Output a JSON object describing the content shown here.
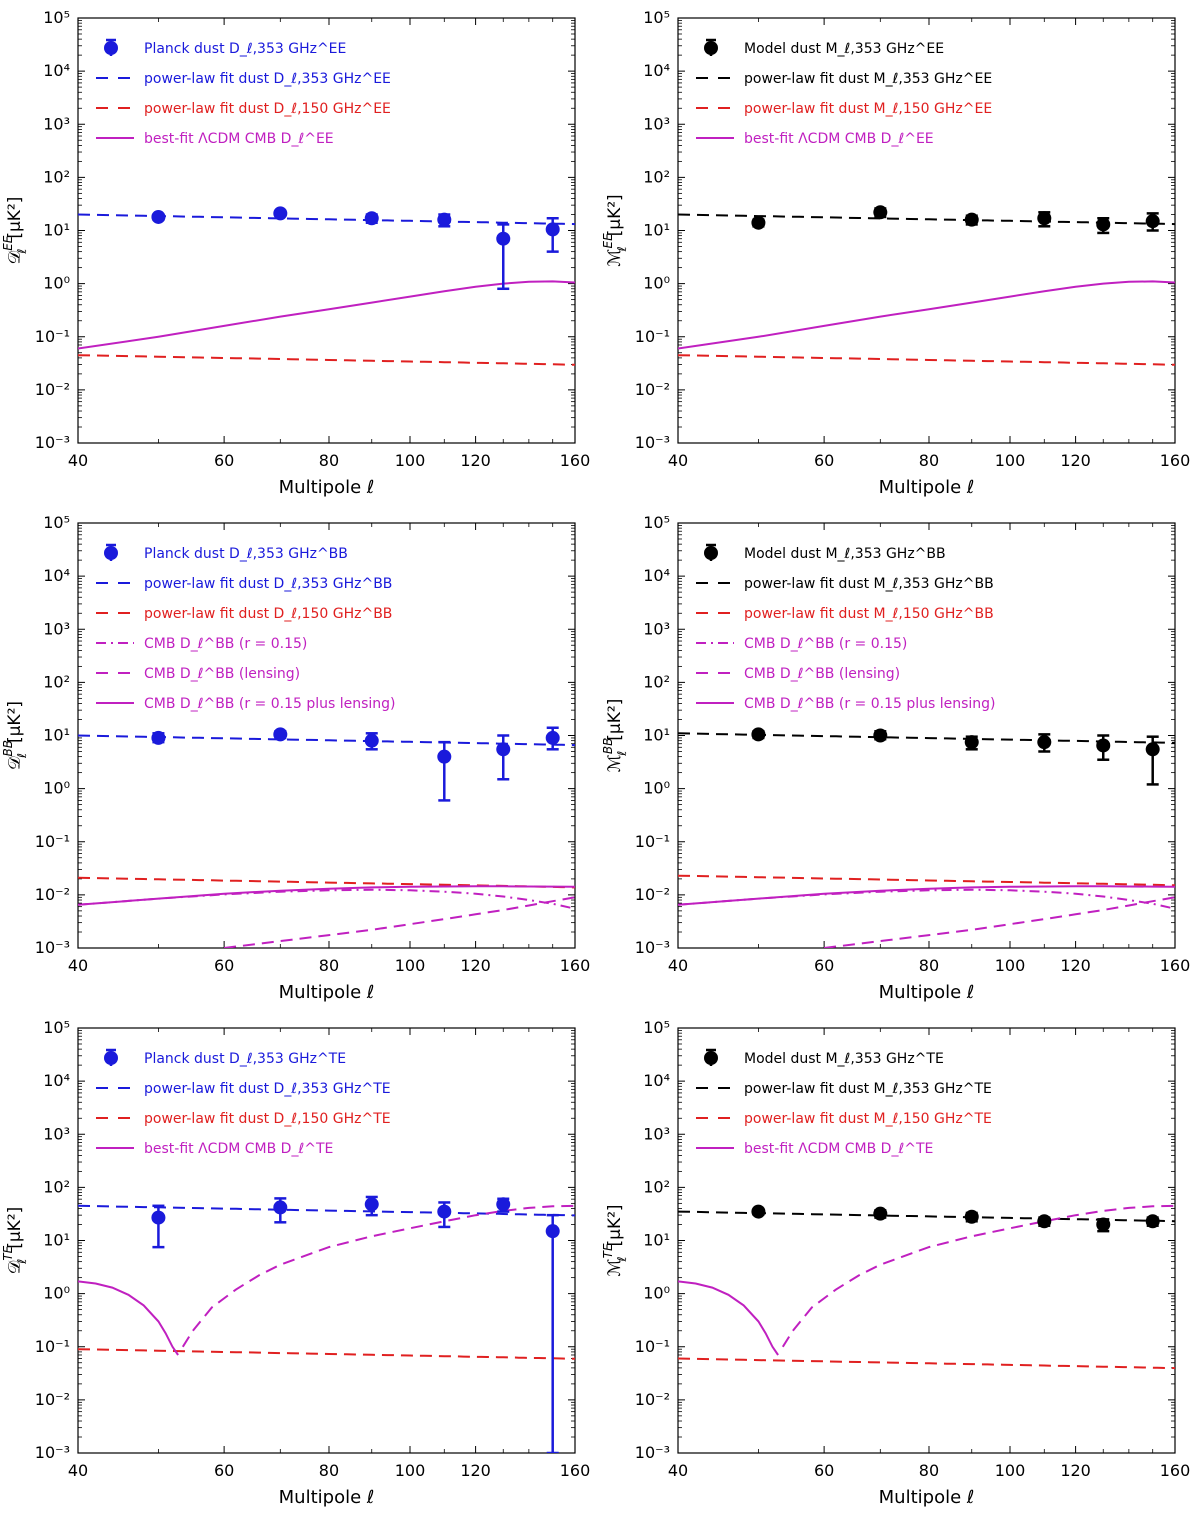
{
  "chart_data": [
    {
      "type": "scatter",
      "panel": "EE-planck",
      "ylabel": "D_ℓ^EE [μK²]",
      "ylabel_main": "𝒟",
      "ylabel_sub": "ℓ",
      "ylabel_sup": "EE",
      "ylabel_unit": "[μK²]",
      "xlabel": "Multipole ℓ",
      "xlim": [
        40,
        160
      ],
      "ylim_exp": [
        -3,
        5
      ],
      "xticks": [
        "40",
        "60",
        "80",
        "100",
        "120",
        "160"
      ],
      "yticks": [
        "10⁵",
        "10⁴",
        "10³",
        "10²",
        "10¹",
        "10⁰",
        "10⁻¹",
        "10⁻²",
        "10⁻³"
      ],
      "legend_position": "top-left",
      "legend": [
        {
          "kind": "points",
          "color": "#1a1adb",
          "label": "Planck dust D_ℓ,353 GHz^EE"
        },
        {
          "kind": "dashed",
          "color": "#1a1adb",
          "label": "power-law fit dust D_ℓ,353 GHz^EE"
        },
        {
          "kind": "dashed",
          "color": "#e02020",
          "label": "power-law fit dust D_ℓ,150 GHz^EE"
        },
        {
          "kind": "solid",
          "color": "#c020c0",
          "label": "best-fit ΛCDM CMB D_ℓ^EE"
        }
      ],
      "points": {
        "color": "#1a1adb",
        "x": [
          50,
          70,
          90,
          110,
          130,
          150
        ],
        "y": [
          18,
          21,
          17,
          16,
          7,
          10.5
        ],
        "err_lo": [
          16,
          19,
          14,
          12,
          0.8,
          4
        ],
        "err_hi": [
          20,
          23,
          20,
          20,
          13,
          17
        ]
      },
      "lines": [
        {
          "style": "dashed",
          "color": "#1a1adb",
          "amp": 20,
          "slope": -0.3
        },
        {
          "style": "dashed",
          "color": "#e02020",
          "amp": 0.045,
          "slope": -0.3
        },
        {
          "style": "solid",
          "color": "#c020c0",
          "x": [
            40,
            50,
            60,
            70,
            80,
            90,
            100,
            110,
            120,
            130,
            140,
            150,
            160
          ],
          "y": [
            0.06,
            0.1,
            0.16,
            0.24,
            0.33,
            0.44,
            0.57,
            0.72,
            0.87,
            1.0,
            1.08,
            1.1,
            1.05
          ]
        }
      ]
    },
    {
      "type": "scatter",
      "panel": "EE-model",
      "ylabel": "M_ℓ^EE [μK²]",
      "ylabel_main": "ℳ",
      "ylabel_sub": "ℓ",
      "ylabel_sup": "EE",
      "ylabel_unit": "[μK²]",
      "xlabel": "Multipole ℓ",
      "xlim": [
        40,
        160
      ],
      "ylim_exp": [
        -3,
        5
      ],
      "xticks": [
        "40",
        "60",
        "80",
        "100",
        "120",
        "160"
      ],
      "yticks": [
        "10⁵",
        "10⁴",
        "10³",
        "10²",
        "10¹",
        "10⁰",
        "10⁻¹",
        "10⁻²",
        "10⁻³"
      ],
      "legend_position": "top-left",
      "legend": [
        {
          "kind": "points",
          "color": "#000000",
          "label": "Model dust M_ℓ,353 GHz^EE"
        },
        {
          "kind": "dashed",
          "color": "#000000",
          "label": "power-law fit dust M_ℓ,353 GHz^EE"
        },
        {
          "kind": "dashed",
          "color": "#e02020",
          "label": "power-law fit dust M_ℓ,150 GHz^EE"
        },
        {
          "kind": "solid",
          "color": "#c020c0",
          "label": "best-fit ΛCDM CMB D_ℓ^EE"
        }
      ],
      "points": {
        "color": "#000000",
        "x": [
          50,
          70,
          90,
          110,
          130,
          150
        ],
        "y": [
          14,
          22,
          16,
          17,
          13,
          15
        ],
        "err_lo": [
          12,
          18,
          13,
          12,
          9,
          10
        ],
        "err_hi": [
          16,
          26,
          19,
          22,
          17,
          21
        ]
      },
      "lines": [
        {
          "style": "dashed",
          "color": "#000000",
          "amp": 20,
          "slope": -0.3
        },
        {
          "style": "dashed",
          "color": "#e02020",
          "amp": 0.045,
          "slope": -0.3
        },
        {
          "style": "solid",
          "color": "#c020c0",
          "x": [
            40,
            50,
            60,
            70,
            80,
            90,
            100,
            110,
            120,
            130,
            140,
            150,
            160
          ],
          "y": [
            0.06,
            0.1,
            0.16,
            0.24,
            0.33,
            0.44,
            0.57,
            0.72,
            0.87,
            1.0,
            1.08,
            1.1,
            1.05
          ]
        }
      ]
    },
    {
      "type": "scatter",
      "panel": "BB-planck",
      "ylabel": "D_ℓ^BB [μK²]",
      "ylabel_main": "𝒟",
      "ylabel_sub": "ℓ",
      "ylabel_sup": "BB",
      "ylabel_unit": "[μK²]",
      "xlabel": "Multipole ℓ",
      "xlim": [
        40,
        160
      ],
      "ylim_exp": [
        -3,
        5
      ],
      "xticks": [
        "40",
        "60",
        "80",
        "100",
        "120",
        "160"
      ],
      "yticks": [
        "10⁵",
        "10⁴",
        "10³",
        "10²",
        "10¹",
        "10⁰",
        "10⁻¹",
        "10⁻²",
        "10⁻³"
      ],
      "legend_position": "top-left",
      "legend": [
        {
          "kind": "points",
          "color": "#1a1adb",
          "label": "Planck dust D_ℓ,353 GHz^BB"
        },
        {
          "kind": "dashed",
          "color": "#1a1adb",
          "label": "power-law fit dust D_ℓ,353 GHz^BB"
        },
        {
          "kind": "dashed",
          "color": "#e02020",
          "label": "power-law fit dust D_ℓ,150 GHz^BB"
        },
        {
          "kind": "dashdot",
          "color": "#c020c0",
          "label": "CMB D_ℓ^BB (r = 0.15)"
        },
        {
          "kind": "dashed",
          "color": "#c020c0",
          "label": "CMB D_ℓ^BB (lensing)"
        },
        {
          "kind": "solid",
          "color": "#c020c0",
          "label": "CMB D_ℓ^BB (r = 0.15 plus lensing)"
        }
      ],
      "points": {
        "color": "#1a1adb",
        "x": [
          50,
          70,
          90,
          110,
          130,
          150
        ],
        "y": [
          9,
          10.5,
          8,
          4,
          5.5,
          9
        ],
        "err_lo": [
          7.5,
          9,
          5.5,
          0.6,
          1.5,
          5.5
        ],
        "err_hi": [
          11,
          12,
          11,
          7.5,
          10,
          14
        ]
      },
      "lines": [
        {
          "style": "dashed",
          "color": "#1a1adb",
          "amp": 10,
          "slope": -0.3
        },
        {
          "style": "dashed",
          "color": "#e02020",
          "amp": 0.021,
          "slope": -0.3
        },
        {
          "style": "solid",
          "color": "#c020c0",
          "x": [
            40,
            50,
            60,
            70,
            80,
            90,
            100,
            110,
            120,
            130,
            140,
            150,
            160
          ],
          "y": [
            0.0065,
            0.0085,
            0.0105,
            0.012,
            0.013,
            0.0138,
            0.0142,
            0.0144,
            0.0145,
            0.0145,
            0.0144,
            0.0143,
            0.0142
          ]
        },
        {
          "style": "dashdot",
          "color": "#c020c0",
          "x": [
            40,
            50,
            60,
            70,
            80,
            90,
            100,
            110,
            120,
            130,
            140,
            150,
            160
          ],
          "y": [
            0.0065,
            0.0085,
            0.0102,
            0.0115,
            0.0122,
            0.0125,
            0.0122,
            0.0115,
            0.0105,
            0.0093,
            0.008,
            0.0068,
            0.0055
          ]
        },
        {
          "style": "dashed",
          "color": "#c020c0",
          "x": [
            60,
            70,
            80,
            90,
            100,
            110,
            120,
            130,
            140,
            150,
            160
          ],
          "y": [
            0.001,
            0.00135,
            0.00175,
            0.0022,
            0.0028,
            0.0035,
            0.0043,
            0.0052,
            0.0063,
            0.0076,
            0.009
          ]
        }
      ]
    },
    {
      "type": "scatter",
      "panel": "BB-model",
      "ylabel": "M_ℓ^BB [μK²]",
      "ylabel_main": "ℳ",
      "ylabel_sub": "ℓ",
      "ylabel_sup": "BB",
      "ylabel_unit": "[μK²]",
      "xlabel": "Multipole ℓ",
      "xlim": [
        40,
        160
      ],
      "ylim_exp": [
        -3,
        5
      ],
      "xticks": [
        "40",
        "60",
        "80",
        "100",
        "120",
        "160"
      ],
      "yticks": [
        "10⁵",
        "10⁴",
        "10³",
        "10²",
        "10¹",
        "10⁰",
        "10⁻¹",
        "10⁻²",
        "10⁻³"
      ],
      "legend_position": "top-left",
      "legend": [
        {
          "kind": "points",
          "color": "#000000",
          "label": "Model dust M_ℓ,353 GHz^BB"
        },
        {
          "kind": "dashed",
          "color": "#000000",
          "label": "power-law fit dust M_ℓ,353 GHz^BB"
        },
        {
          "kind": "dashed",
          "color": "#e02020",
          "label": "power-law fit dust M_ℓ,150 GHz^BB"
        },
        {
          "kind": "dashdot",
          "color": "#c020c0",
          "label": "CMB D_ℓ^BB (r = 0.15)"
        },
        {
          "kind": "dashed",
          "color": "#c020c0",
          "label": "CMB D_ℓ^BB (lensing)"
        },
        {
          "kind": "solid",
          "color": "#c020c0",
          "label": "CMB D_ℓ^BB (r = 0.15 plus lensing)"
        }
      ],
      "points": {
        "color": "#000000",
        "x": [
          50,
          70,
          90,
          110,
          130,
          150
        ],
        "y": [
          10.5,
          10,
          7.5,
          7.5,
          6.5,
          5.5
        ],
        "err_lo": [
          9,
          8.5,
          5.5,
          5,
          3.5,
          1.2
        ],
        "err_hi": [
          12,
          12,
          9.5,
          10.5,
          10,
          9.5
        ]
      },
      "lines": [
        {
          "style": "dashed",
          "color": "#000000",
          "amp": 11,
          "slope": -0.3
        },
        {
          "style": "dashed",
          "color": "#e02020",
          "amp": 0.023,
          "slope": -0.3
        },
        {
          "style": "solid",
          "color": "#c020c0",
          "x": [
            40,
            50,
            60,
            70,
            80,
            90,
            100,
            110,
            120,
            130,
            140,
            150,
            160
          ],
          "y": [
            0.0065,
            0.0085,
            0.0105,
            0.012,
            0.013,
            0.0138,
            0.0142,
            0.0144,
            0.0145,
            0.0145,
            0.0144,
            0.0143,
            0.0142
          ]
        },
        {
          "style": "dashdot",
          "color": "#c020c0",
          "x": [
            40,
            50,
            60,
            70,
            80,
            90,
            100,
            110,
            120,
            130,
            140,
            150,
            160
          ],
          "y": [
            0.0065,
            0.0085,
            0.0102,
            0.0115,
            0.0122,
            0.0125,
            0.0122,
            0.0115,
            0.0105,
            0.0093,
            0.008,
            0.0068,
            0.0055
          ]
        },
        {
          "style": "dashed",
          "color": "#c020c0",
          "x": [
            60,
            70,
            80,
            90,
            100,
            110,
            120,
            130,
            140,
            150,
            160
          ],
          "y": [
            0.001,
            0.00135,
            0.00175,
            0.0022,
            0.0028,
            0.0035,
            0.0043,
            0.0052,
            0.0063,
            0.0076,
            0.009
          ]
        }
      ]
    },
    {
      "type": "scatter",
      "panel": "TE-planck",
      "ylabel": "D_ℓ^TE [μK²]",
      "ylabel_main": "𝒟",
      "ylabel_sub": "ℓ",
      "ylabel_sup": "TE",
      "ylabel_unit": "[μK²]",
      "xlabel": "Multipole ℓ",
      "xlim": [
        40,
        160
      ],
      "ylim_exp": [
        -3,
        5
      ],
      "xticks": [
        "40",
        "60",
        "80",
        "100",
        "120",
        "160"
      ],
      "yticks": [
        "10⁵",
        "10⁴",
        "10³",
        "10²",
        "10¹",
        "10⁰",
        "10⁻¹",
        "10⁻²",
        "10⁻³"
      ],
      "legend_position": "top-left",
      "legend": [
        {
          "kind": "points",
          "color": "#1a1adb",
          "label": "Planck dust D_ℓ,353 GHz^TE"
        },
        {
          "kind": "dashed",
          "color": "#1a1adb",
          "label": "power-law fit dust D_ℓ,353 GHz^TE"
        },
        {
          "kind": "dashed",
          "color": "#e02020",
          "label": "power-law fit dust D_ℓ,150 GHz^TE"
        },
        {
          "kind": "solid",
          "color": "#c020c0",
          "label": "best-fit ΛCDM CMB D_ℓ^TE"
        }
      ],
      "points": {
        "color": "#1a1adb",
        "x": [
          50,
          70,
          90,
          110,
          130,
          150
        ],
        "y": [
          27,
          42,
          48,
          35,
          48,
          15
        ],
        "err_lo": [
          7.5,
          22,
          30,
          18,
          35,
          0.001
        ],
        "err_hi": [
          45,
          62,
          66,
          52,
          61,
          30
        ]
      },
      "lines": [
        {
          "style": "dashed",
          "color": "#1a1adb",
          "amp": 45,
          "slope": -0.3
        },
        {
          "style": "dashed",
          "color": "#e02020",
          "amp": 0.09,
          "slope": -0.3
        },
        {
          "style": "solid",
          "color": "#c020c0",
          "x": [
            40,
            42,
            44,
            46,
            48,
            50,
            51,
            52,
            52.8
          ],
          "y": [
            1.7,
            1.55,
            1.3,
            0.95,
            0.6,
            0.3,
            0.18,
            0.1,
            0.07
          ]
        },
        {
          "style": "dashed",
          "color": "#c020c0",
          "x": [
            53.5,
            55,
            58,
            62,
            66,
            70,
            80,
            90,
            100,
            110,
            120,
            130,
            140,
            150,
            160
          ],
          "y": [
            0.1,
            0.2,
            0.55,
            1.2,
            2.2,
            3.5,
            7.5,
            12,
            17,
            23,
            30,
            36,
            41,
            44,
            45
          ]
        }
      ]
    },
    {
      "type": "scatter",
      "panel": "TE-model",
      "ylabel": "M_ℓ^TE [μK²]",
      "ylabel_main": "ℳ",
      "ylabel_sub": "ℓ",
      "ylabel_sup": "TE",
      "ylabel_unit": "[μK²]",
      "xlabel": "Multipole ℓ",
      "xlim": [
        40,
        160
      ],
      "ylim_exp": [
        -3,
        5
      ],
      "xticks": [
        "40",
        "60",
        "80",
        "100",
        "120",
        "160"
      ],
      "yticks": [
        "10⁵",
        "10⁴",
        "10³",
        "10²",
        "10¹",
        "10⁰",
        "10⁻¹",
        "10⁻²",
        "10⁻³"
      ],
      "legend_position": "top-left",
      "legend": [
        {
          "kind": "points",
          "color": "#000000",
          "label": "Model dust M_ℓ,353 GHz^TE"
        },
        {
          "kind": "dashed",
          "color": "#000000",
          "label": "power-law fit dust M_ℓ,353 GHz^TE"
        },
        {
          "kind": "dashed",
          "color": "#e02020",
          "label": "power-law fit dust M_ℓ,150 GHz^TE"
        },
        {
          "kind": "solid",
          "color": "#c020c0",
          "label": "best-fit ΛCDM CMB D_ℓ^TE"
        }
      ],
      "points": {
        "color": "#000000",
        "x": [
          50,
          70,
          90,
          110,
          130,
          150
        ],
        "y": [
          35,
          32,
          28,
          23,
          20,
          23
        ],
        "err_lo": [
          31,
          27,
          23,
          19,
          15,
          19
        ],
        "err_hi": [
          39,
          37,
          33,
          27,
          25,
          27
        ]
      },
      "lines": [
        {
          "style": "dashed",
          "color": "#000000",
          "amp": 35,
          "slope": -0.3
        },
        {
          "style": "dashed",
          "color": "#e02020",
          "amp": 0.06,
          "slope": -0.3
        },
        {
          "style": "solid",
          "color": "#c020c0",
          "x": [
            40,
            42,
            44,
            46,
            48,
            50,
            51,
            52,
            52.8
          ],
          "y": [
            1.7,
            1.55,
            1.3,
            0.95,
            0.6,
            0.3,
            0.18,
            0.1,
            0.07
          ]
        },
        {
          "style": "dashed",
          "color": "#c020c0",
          "x": [
            53.5,
            55,
            58,
            62,
            66,
            70,
            80,
            90,
            100,
            110,
            120,
            130,
            140,
            150,
            160
          ],
          "y": [
            0.1,
            0.2,
            0.55,
            1.2,
            2.2,
            3.5,
            7.5,
            12,
            17,
            23,
            30,
            36,
            41,
            44,
            45
          ]
        }
      ]
    }
  ]
}
